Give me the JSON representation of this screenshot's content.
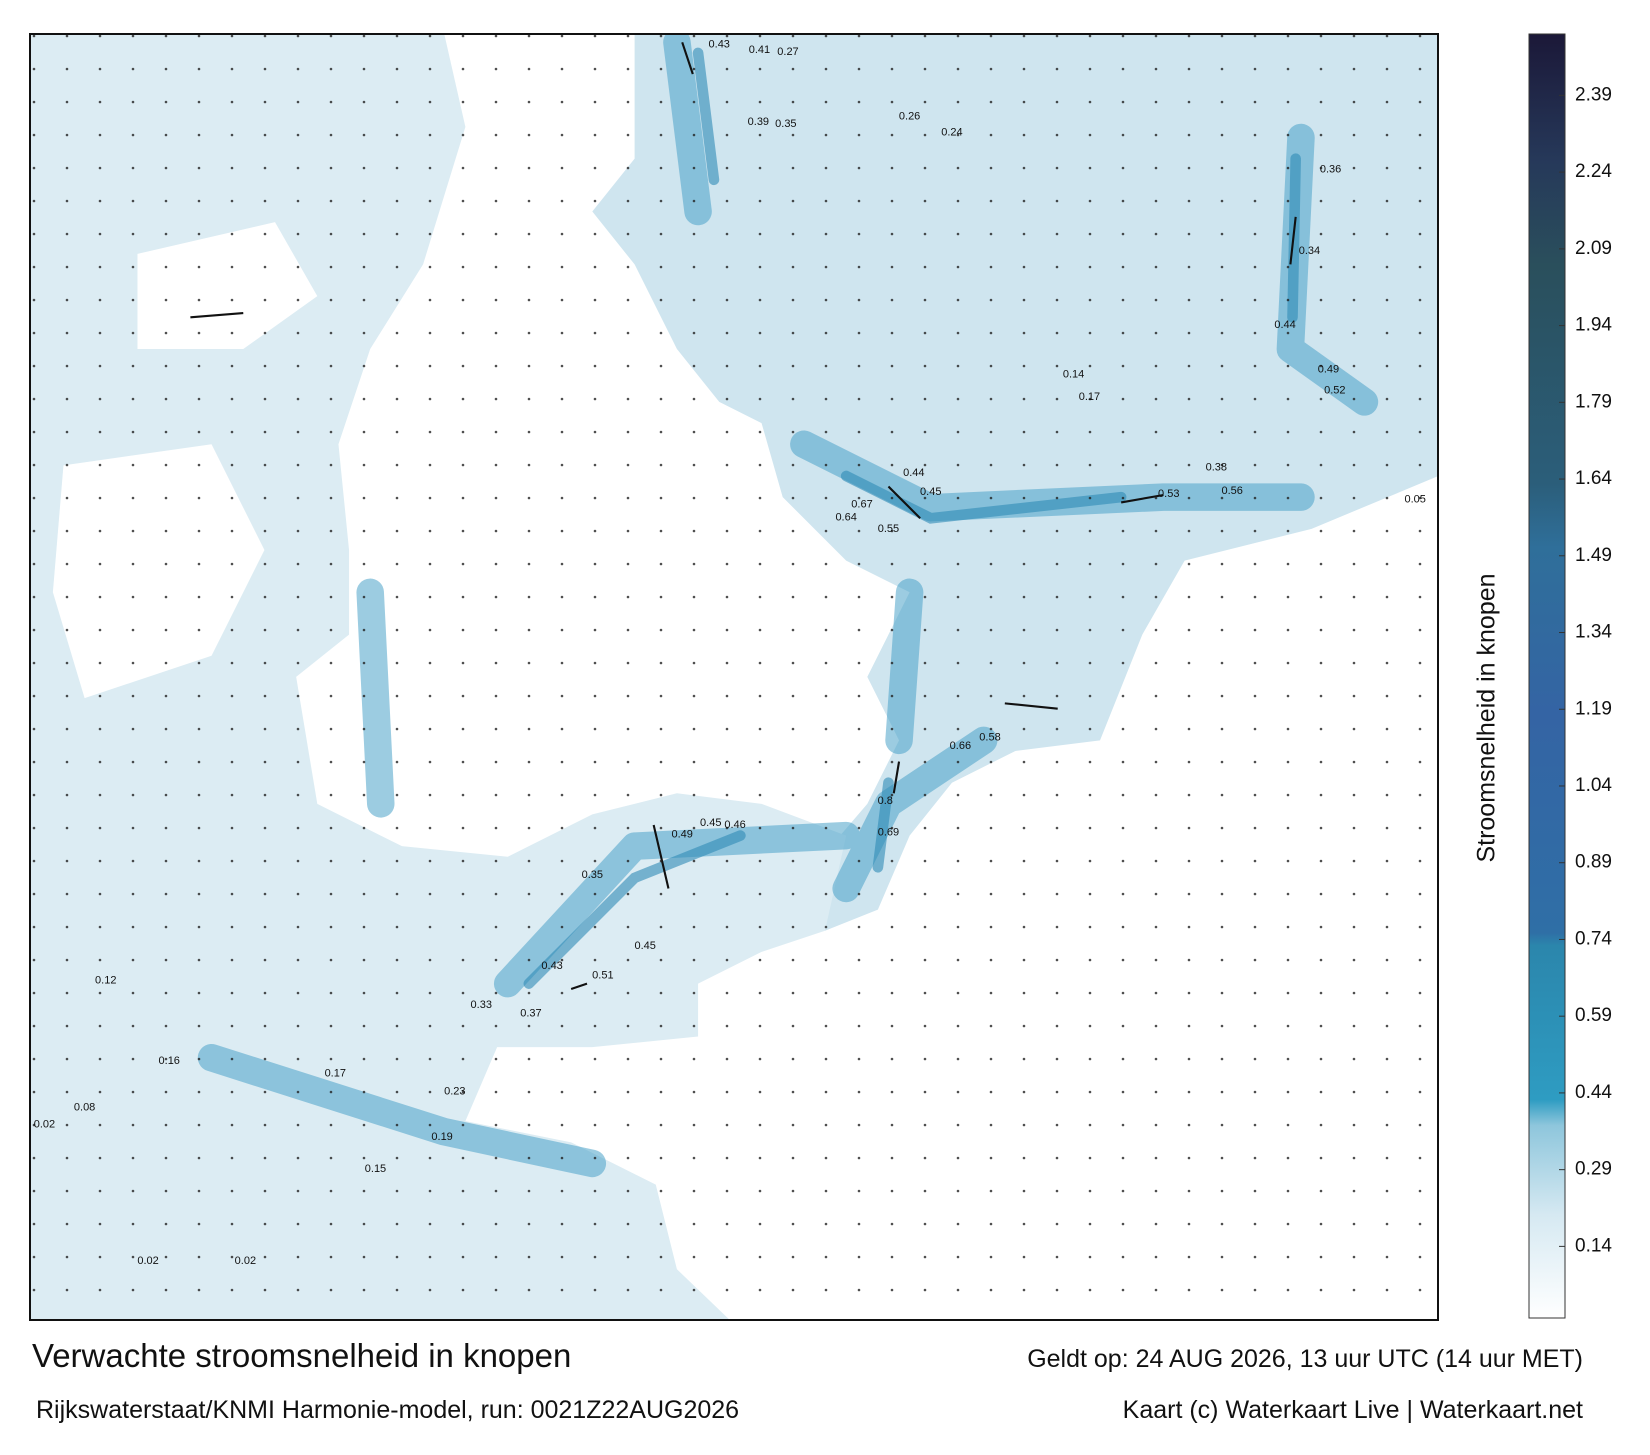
{
  "title": "Verwachte stroomsnelheid in knopen",
  "subtitle": "Rijkswaterstaat/KNMI Harmonie-model, run: 0021Z22AUG2026",
  "valid_time": "Geldt op: 24 AUG 2026, 13 uur UTC (14 uur MET)",
  "credit": "Kaart (c) Waterkaart Live | Waterkaart.net",
  "colorbar": {
    "label": "Stroomsnelheid in knopen",
    "clim": [
      0,
      2.51
    ],
    "ticks": [
      0.14,
      0.29,
      0.44,
      0.59,
      0.74,
      0.89,
      1.04,
      1.19,
      1.34,
      1.49,
      1.64,
      1.79,
      1.94,
      2.09,
      2.24,
      2.39
    ]
  },
  "value_labels": [
    0.43,
    0.41,
    0.27,
    0.39,
    0.35,
    0.45,
    0.44,
    0.55,
    0.67,
    0.64,
    0.53,
    0.56,
    0.52,
    0.49,
    0.44,
    0.36,
    0.34,
    0.24,
    0.26,
    0.17,
    0.14,
    0.38,
    0.8,
    0.69,
    0.58,
    0.66,
    0.46,
    0.45,
    0.49,
    0.35,
    0.43,
    0.51,
    0.45,
    0.37,
    0.33,
    0.23,
    0.15,
    0.19,
    0.17,
    0.16,
    0.02,
    0.02,
    0.02,
    0.05,
    0.08,
    0.12
  ]
}
